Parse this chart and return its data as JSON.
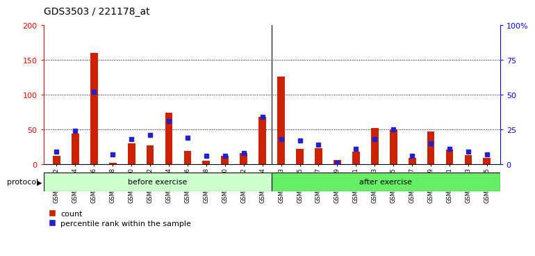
{
  "title": "GDS3503 / 221178_at",
  "samples": [
    "GSM306062",
    "GSM306064",
    "GSM306066",
    "GSM306068",
    "GSM306070",
    "GSM306072",
    "GSM306074",
    "GSM306076",
    "GSM306078",
    "GSM306080",
    "GSM306082",
    "GSM306084",
    "GSM306063",
    "GSM306065",
    "GSM306067",
    "GSM306069",
    "GSM306071",
    "GSM306073",
    "GSM306075",
    "GSM306077",
    "GSM306079",
    "GSM306081",
    "GSM306083",
    "GSM306085"
  ],
  "count": [
    12,
    44,
    160,
    2,
    30,
    27,
    74,
    19,
    5,
    12,
    16,
    68,
    126,
    22,
    23,
    6,
    18,
    52,
    50,
    9,
    47,
    21,
    13,
    9
  ],
  "percentile": [
    9,
    24,
    52,
    7,
    18,
    21,
    31,
    19,
    6,
    6,
    8,
    34,
    18,
    17,
    14,
    1,
    11,
    18,
    25,
    6,
    15,
    11,
    9,
    7
  ],
  "before_color": "#ccffcc",
  "after_color": "#66ee66",
  "bar_color_red": "#cc2200",
  "bar_color_blue": "#2222cc",
  "left_ylim": [
    0,
    200
  ],
  "right_ylim": [
    0,
    100
  ],
  "left_yticks": [
    0,
    50,
    100,
    150,
    200
  ],
  "right_yticks": [
    0,
    25,
    50,
    75,
    100
  ],
  "right_yticklabels": [
    "0",
    "25",
    "50",
    "75",
    "100%"
  ],
  "n_before": 12,
  "n_after": 12,
  "group_label_before": "before exercise",
  "group_label_after": "after exercise",
  "legend_count": "count",
  "legend_pct": "percentile rank within the sample",
  "protocol_label": "protocol"
}
